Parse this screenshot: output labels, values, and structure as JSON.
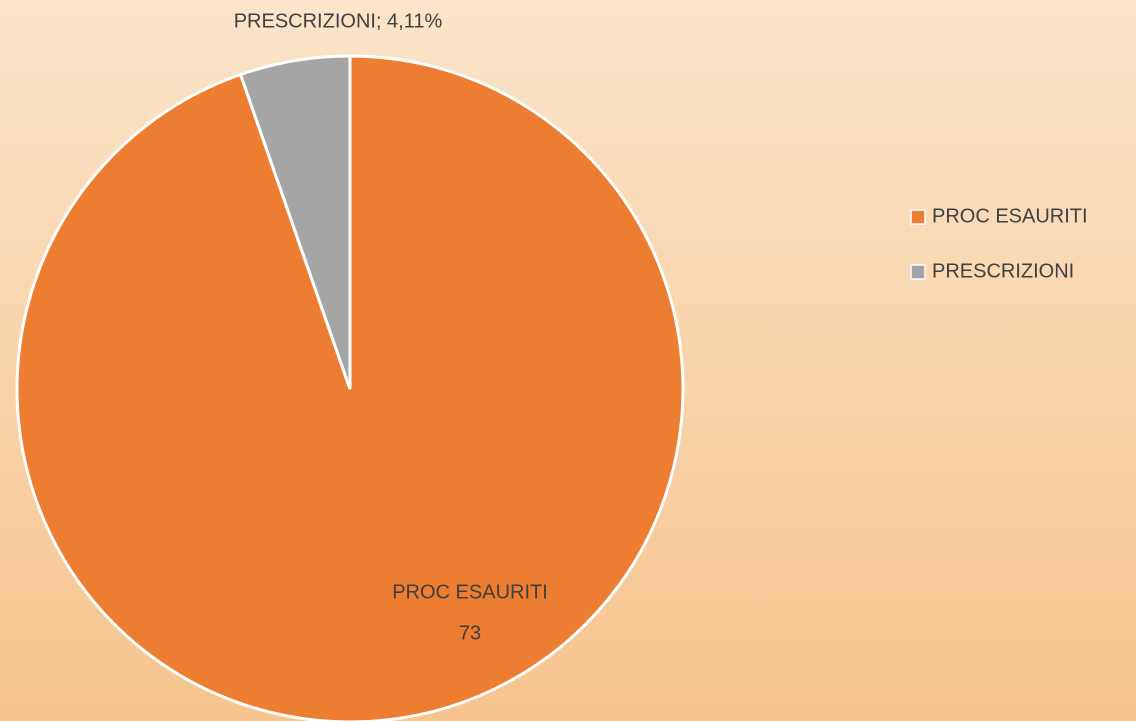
{
  "chart_data": {
    "type": "pie",
    "categories": [
      "PROC ESAURITI",
      "PRESCRIZIONI"
    ],
    "values": [
      73,
      4.11
    ],
    "value_labels": [
      "73",
      "PRESCRIZIONI; 4,11%"
    ],
    "colors": [
      "#ed7d31",
      "#a5a5a5"
    ],
    "legend": "right"
  }
}
